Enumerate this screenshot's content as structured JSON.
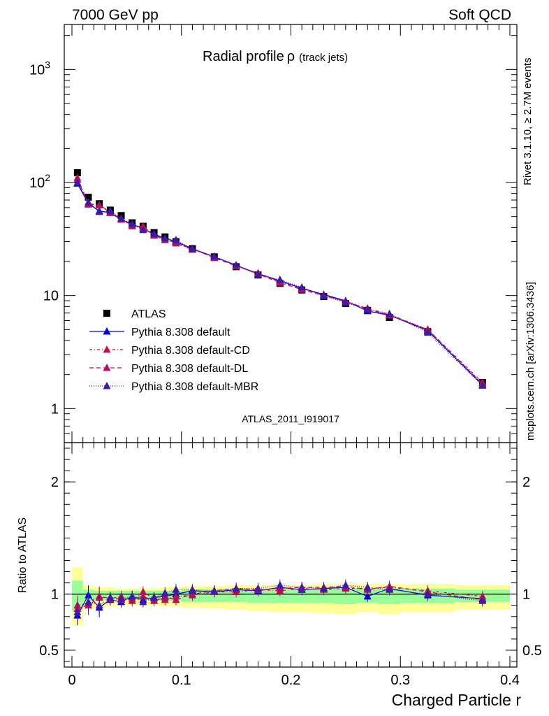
{
  "header": {
    "left": "7000 GeV pp",
    "right": "Soft QCD"
  },
  "side_labels": {
    "rivet": "Rivet 3.1.10, ≥ 2.7M events",
    "mcplots": "mcplots.cern.ch [arXiv:1306.3436]"
  },
  "chart_data": [
    {
      "type": "scatter",
      "title": "Radial profile",
      "title_symbol": "ρ",
      "title_suffix": "(track jets)",
      "watermark": "ATLAS_2011_I919017",
      "ylog": true,
      "xlim": [
        0,
        0.4
      ],
      "ylim": [
        0.5,
        2500
      ],
      "y_ticks": [
        {
          "value": 1,
          "label": "1"
        },
        {
          "value": 10,
          "label": "10"
        },
        {
          "value": 100,
          "label": "10",
          "sup": "2"
        },
        {
          "value": 1000,
          "label": "10",
          "sup": "3"
        }
      ],
      "legend_position": "lower-left",
      "x": [
        0.005,
        0.015,
        0.025,
        0.035,
        0.045,
        0.055,
        0.065,
        0.075,
        0.085,
        0.095,
        0.11,
        0.13,
        0.15,
        0.17,
        0.19,
        0.21,
        0.23,
        0.25,
        0.27,
        0.29,
        0.325,
        0.375
      ],
      "series": [
        {
          "name": "ATLAS",
          "color": "#000000",
          "marker": "square",
          "values": [
            122,
            74,
            65,
            57,
            51,
            44,
            41,
            36,
            33,
            30,
            26,
            22,
            18,
            15.2,
            12.8,
            11.2,
            9.8,
            8.5,
            7.4,
            6.4,
            4.8,
            1.7
          ]
        },
        {
          "name": "Pythia 8.308 default",
          "color": "#0000dd",
          "marker": "triangle",
          "dash": "",
          "values": [
            98,
            65,
            56,
            54,
            47,
            43,
            39,
            35,
            32,
            30,
            26,
            22,
            18.5,
            15.6,
            13.5,
            11.6,
            10.2,
            9.0,
            7.3,
            6.7,
            4.9,
            1.62
          ]
        },
        {
          "name": "Pythia 8.308 default-CD",
          "color": "#c4104a",
          "marker": "triangle",
          "dash": "4,3,1,3",
          "values": [
            110,
            65,
            63,
            54,
            48,
            41,
            41,
            34,
            31,
            29,
            25.5,
            22,
            18.2,
            15.8,
            13.2,
            11.5,
            10.1,
            8.8,
            7.7,
            6.8,
            5.0,
            1.7
          ]
        },
        {
          "name": "Pythia 8.308 default-DL",
          "color": "#b5105f",
          "marker": "triangle",
          "dash": "6,4",
          "values": [
            106,
            64,
            63,
            55,
            47,
            42,
            40,
            34,
            32,
            29,
            26,
            21.5,
            18.3,
            15.5,
            13.0,
            11.3,
            10.0,
            8.9,
            7.6,
            6.7,
            5.0,
            1.65
          ]
        },
        {
          "name": "Pythia 8.308 default-MBR",
          "color": "#3e1aa8",
          "marker": "triangle",
          "dash": "1,2",
          "values": [
            100,
            67,
            55,
            56,
            48,
            43,
            38,
            35,
            32,
            31,
            25.8,
            22.2,
            18.6,
            15.4,
            13.8,
            11.8,
            9.9,
            8.7,
            7.5,
            6.9,
            4.7,
            1.6
          ]
        }
      ]
    },
    {
      "type": "scatter",
      "ylabel": "Ratio to ATLAS",
      "xlabel": "Charged Particle r",
      "xlim": [
        0,
        0.4
      ],
      "ylim": [
        0.35,
        2.35
      ],
      "x_ticks": [
        {
          "value": 0,
          "label": "0"
        },
        {
          "value": 0.1,
          "label": "0.1"
        },
        {
          "value": 0.2,
          "label": "0.2"
        },
        {
          "value": 0.3,
          "label": "0.3"
        },
        {
          "value": 0.4,
          "label": "0.4"
        }
      ],
      "y_ticks": [
        {
          "value": 0.5,
          "label": "0.5"
        },
        {
          "value": 1,
          "label": "1"
        },
        {
          "value": 2,
          "label": "2"
        }
      ],
      "reference_line": 1,
      "bands": {
        "edges": [
          0,
          0.01,
          0.02,
          0.03,
          0.04,
          0.05,
          0.06,
          0.07,
          0.08,
          0.09,
          0.1,
          0.12,
          0.14,
          0.16,
          0.18,
          0.2,
          0.22,
          0.24,
          0.26,
          0.28,
          0.3,
          0.35,
          0.4
        ],
        "yellow_lo": [
          0.72,
          0.86,
          0.88,
          0.89,
          0.9,
          0.9,
          0.9,
          0.9,
          0.89,
          0.89,
          0.88,
          0.87,
          0.86,
          0.85,
          0.84,
          0.84,
          0.83,
          0.82,
          0.84,
          0.82,
          0.84,
          0.86
        ],
        "yellow_hi": [
          1.24,
          1.08,
          1.06,
          1.06,
          1.05,
          1.05,
          1.05,
          1.05,
          1.06,
          1.06,
          1.07,
          1.07,
          1.08,
          1.08,
          1.08,
          1.08,
          1.09,
          1.09,
          1.09,
          1.09,
          1.09,
          1.08
        ],
        "green_lo": [
          0.85,
          0.94,
          0.95,
          0.95,
          0.95,
          0.95,
          0.95,
          0.94,
          0.94,
          0.94,
          0.93,
          0.93,
          0.93,
          0.92,
          0.92,
          0.92,
          0.92,
          0.91,
          0.92,
          0.91,
          0.92,
          0.93
        ],
        "green_hi": [
          1.12,
          1.04,
          1.03,
          1.03,
          1.03,
          1.03,
          1.03,
          1.03,
          1.03,
          1.03,
          1.04,
          1.04,
          1.04,
          1.04,
          1.04,
          1.04,
          1.05,
          1.05,
          1.05,
          1.05,
          1.05,
          1.04
        ],
        "yellow_color": "#ffff99",
        "green_color": "#99ff99"
      },
      "x": [
        0.005,
        0.015,
        0.025,
        0.035,
        0.045,
        0.055,
        0.065,
        0.075,
        0.085,
        0.095,
        0.11,
        0.13,
        0.15,
        0.17,
        0.19,
        0.21,
        0.23,
        0.25,
        0.27,
        0.29,
        0.325,
        0.375
      ],
      "series": [
        {
          "name": "Pythia 8.308 default",
          "color": "#0000dd",
          "dash": "",
          "values": [
            0.81,
            0.99,
            0.88,
            0.95,
            0.93,
            0.98,
            0.95,
            0.97,
            0.98,
            1.0,
            1.03,
            1.02,
            1.04,
            1.03,
            1.06,
            1.04,
            1.05,
            1.06,
            0.98,
            1.05,
            0.99,
            0.96
          ]
        },
        {
          "name": "Pythia 8.308 default-CD",
          "color": "#c4104a",
          "dash": "4,3,1,3",
          "values": [
            0.9,
            0.92,
            0.98,
            0.96,
            0.98,
            0.94,
            1.02,
            0.96,
            0.95,
            0.98,
            0.99,
            1.02,
            1.02,
            1.04,
            1.03,
            1.05,
            1.04,
            1.05,
            1.05,
            1.06,
            1.03,
            0.98
          ]
        },
        {
          "name": "Pythia 8.308 default-DL",
          "color": "#b5105f",
          "dash": "6,4",
          "values": [
            0.87,
            0.9,
            0.97,
            0.97,
            0.95,
            0.96,
            0.98,
            0.94,
            0.97,
            0.95,
            1.0,
            1.03,
            1.05,
            1.04,
            1.05,
            1.06,
            1.06,
            1.07,
            1.04,
            1.07,
            1.02,
            0.95
          ]
        },
        {
          "name": "Pythia 8.308 default-MBR",
          "color": "#3e1aa8",
          "dash": "1,2",
          "values": [
            0.84,
            0.93,
            0.9,
            0.97,
            0.96,
            0.98,
            0.93,
            0.97,
            1.01,
            1.04,
            1.04,
            1.03,
            1.05,
            1.05,
            1.08,
            1.06,
            1.05,
            1.08,
            1.06,
            1.04,
            1.0,
            0.94
          ]
        }
      ]
    }
  ]
}
